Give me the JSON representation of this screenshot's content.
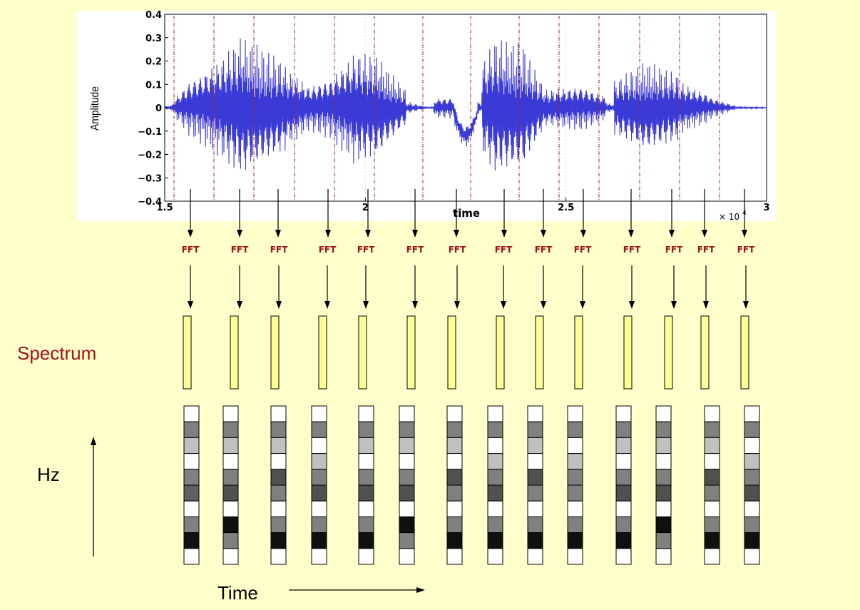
{
  "plot": {
    "ylabel": "Amplitude",
    "xlabel": "time",
    "y_ticks": [
      "0.4",
      "0.3",
      "0.2",
      "0.1",
      "0",
      "−0.1",
      "−0.2",
      "−0.3",
      "−0.4"
    ],
    "x_ticks": [
      "1.5",
      "2",
      "2.5",
      "3"
    ],
    "x_multiplier": "× 10",
    "x_multiplier_exp": "4",
    "ylim": [
      -0.4,
      0.4
    ],
    "xlim": [
      1.5,
      3.0
    ],
    "waveform_color": "#3a3ad6"
  },
  "fft_label": "FFT",
  "fft_color": "#a3101a",
  "spectrum_label": "Spectrum",
  "spectrum_color": "#a3101a",
  "spectrum_box_color": "#ffff99",
  "hz_label": "Hz",
  "time_label": "Time",
  "frames": [
    {
      "levels": [
        "#ffffff",
        "#808080",
        "#c0c0c0",
        "#ffffff",
        "#808080",
        "#606060",
        "#ffffff",
        "#808080",
        "#101010",
        "#ffffff"
      ]
    },
    {
      "levels": [
        "#ffffff",
        "#808080",
        "#c0c0c0",
        "#ffffff",
        "#808080",
        "#505050",
        "#ffffff",
        "#101010",
        "#808080",
        "#ffffff"
      ]
    },
    {
      "levels": [
        "#ffffff",
        "#808080",
        "#c0c0c0",
        "#ffffff",
        "#505050",
        "#808080",
        "#ffffff",
        "#808080",
        "#101010",
        "#ffffff"
      ]
    },
    {
      "levels": [
        "#ffffff",
        "#808080",
        "#ffffff",
        "#c0c0c0",
        "#808080",
        "#505050",
        "#ffffff",
        "#808080",
        "#101010",
        "#ffffff"
      ]
    },
    {
      "levels": [
        "#ffffff",
        "#808080",
        "#c0c0c0",
        "#ffffff",
        "#808080",
        "#505050",
        "#ffffff",
        "#808080",
        "#101010",
        "#ffffff"
      ]
    },
    {
      "levels": [
        "#ffffff",
        "#808080",
        "#c0c0c0",
        "#ffffff",
        "#808080",
        "#505050",
        "#ffffff",
        "#101010",
        "#808080",
        "#ffffff"
      ]
    },
    {
      "levels": [
        "#ffffff",
        "#808080",
        "#c0c0c0",
        "#ffffff",
        "#505050",
        "#808080",
        "#ffffff",
        "#808080",
        "#101010",
        "#ffffff"
      ]
    },
    {
      "levels": [
        "#ffffff",
        "#808080",
        "#ffffff",
        "#c0c0c0",
        "#808080",
        "#505050",
        "#ffffff",
        "#808080",
        "#101010",
        "#ffffff"
      ]
    },
    {
      "levels": [
        "#ffffff",
        "#808080",
        "#c0c0c0",
        "#ffffff",
        "#505050",
        "#808080",
        "#ffffff",
        "#808080",
        "#101010",
        "#ffffff"
      ]
    },
    {
      "levels": [
        "#ffffff",
        "#808080",
        "#ffffff",
        "#c0c0c0",
        "#808080",
        "#808080",
        "#ffffff",
        "#808080",
        "#101010",
        "#ffffff"
      ]
    },
    {
      "levels": [
        "#ffffff",
        "#808080",
        "#c0c0c0",
        "#ffffff",
        "#808080",
        "#505050",
        "#ffffff",
        "#808080",
        "#101010",
        "#ffffff"
      ]
    },
    {
      "levels": [
        "#ffffff",
        "#808080",
        "#c0c0c0",
        "#ffffff",
        "#808080",
        "#505050",
        "#ffffff",
        "#101010",
        "#808080",
        "#ffffff"
      ]
    },
    {
      "levels": [
        "#ffffff",
        "#808080",
        "#c0c0c0",
        "#ffffff",
        "#505050",
        "#808080",
        "#ffffff",
        "#808080",
        "#101010",
        "#ffffff"
      ]
    },
    {
      "levels": [
        "#ffffff",
        "#808080",
        "#ffffff",
        "#c0c0c0",
        "#808080",
        "#505050",
        "#ffffff",
        "#808080",
        "#101010",
        "#ffffff"
      ]
    }
  ]
}
